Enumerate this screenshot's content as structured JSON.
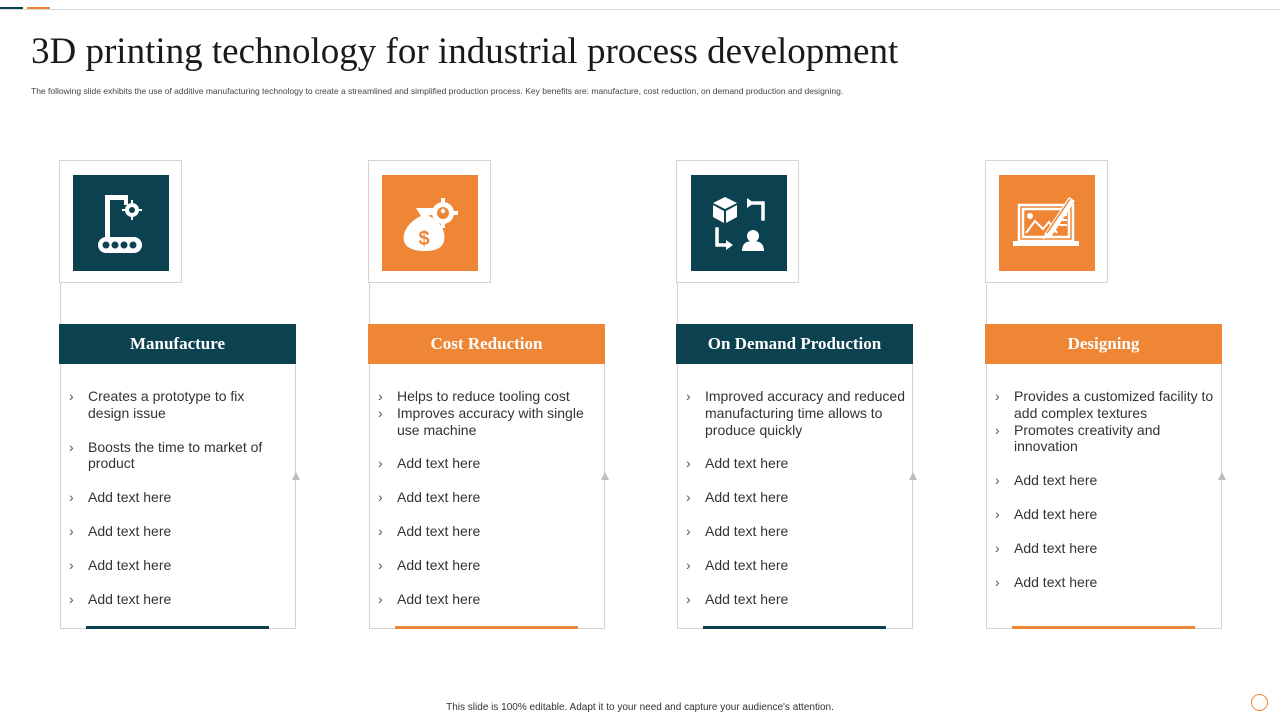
{
  "page": {
    "title": "3D printing technology for industrial process development",
    "subtitle": "The  following slide exhibits the use of additive manufacturing technology to create a  streamlined and  simplified production process.  Key benefits are:  manufacture,  cost reduction,  on demand  production and designing.",
    "footer": "This slide is 100% editable.  Adapt it to your need and capture your audience's attention."
  },
  "colors": {
    "dark": "#0c4150",
    "orange": "#ef8636",
    "border": "#d4d4d4"
  },
  "cards": [
    {
      "header": "Manufacture",
      "accent": "dark",
      "icon": "robotic-arm-conveyor-icon",
      "items": [
        "Creates a prototype to fix design issue",
        " Boosts the time to market of product",
        "Add text here",
        "Add text here",
        "Add text here",
        "Add text here"
      ]
    },
    {
      "header": "Cost Reduction",
      "accent": "orange",
      "icon": "money-bag-gear-icon",
      "items": [
        "Helps to reduce tooling cost",
        "Improves accuracy with single use machine",
        "Add text here",
        "Add text here",
        "Add text here",
        "Add text here",
        "Add text here"
      ]
    },
    {
      "header": "On Demand Production",
      "accent": "dark",
      "icon": "box-arrows-user-icon",
      "items": [
        "Improved accuracy and reduced manufacturing time allows to produce quickly",
        "Add text here",
        "Add text here",
        "Add text here",
        "Add text here",
        "Add text here"
      ]
    },
    {
      "header": "Designing",
      "accent": "orange",
      "icon": "laptop-design-icon",
      "items": [
        "Provides a customized facility to add complex textures",
        "Promotes creativity and innovation",
        "Add text here",
        "Add text here",
        "Add text here",
        "Add text here"
      ]
    }
  ]
}
